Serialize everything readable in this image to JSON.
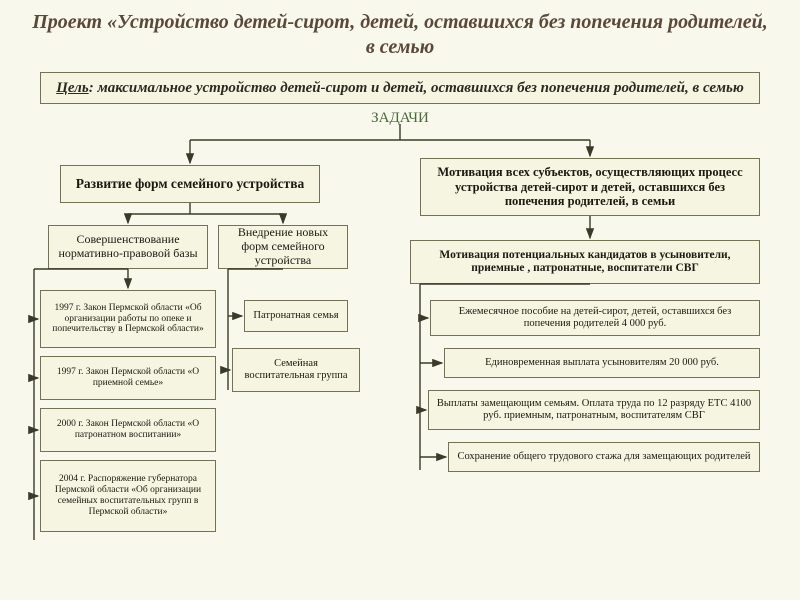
{
  "title": "Проект «Устройство детей-сирот, детей, оставшихся без попечения родителей, в семью",
  "goal_label": "Цель",
  "goal_text": ": максимальное устройство детей-сирот и детей, оставшихся без попечения родителей, в семью",
  "tasks_label": "ЗАДАЧИ",
  "left_header": "Развитие форм семейного устройства",
  "right_header": "Мотивация всех субъектов, осуществляющих процесс устройства детей-сирот и детей, оставшихся без попечения родителей, в семьи",
  "sub_left_a": "Совершенствование нормативно-правовой базы",
  "sub_left_b": "Внедрение новых форм семейного устройства",
  "law1": "1997 г.\nЗакон Пермской области «Об организации работы по опеке и попечительству в Пермской области»",
  "law2": "1997 г.\nЗакон Пермской области «О приемной семье»",
  "law3": "2000 г.\nЗакон Пермской области «О патронатном воспитании»",
  "law4": "2004 г.\nРаспоряжение губернатора Пермской области «Об организации семейных воспитательных групп в Пермской области»",
  "form1": "Патронатная семья",
  "form2": "Семейная воспитательная группа",
  "motiv_sub": "Мотивация потенциальных кандидатов в усыновители, приемные , патронатные, воспитатели СВГ",
  "pay1": "Ежемесячное пособие на детей-сирот, детей, оставшихся без попечения родителей\n4 000 руб.",
  "pay2": "Единовременная выплата усыновителям\n20 000 руб.",
  "pay3": "Выплаты замещающим семьям. Оплата труда по 12 разряду ЕТС 4100 руб. приемным, патронатным, воспитателям СВГ",
  "pay4": "Сохранение общего трудового стажа для замещающих родителей",
  "colors": {
    "page_bg": "#f9f8ed",
    "box_bg": "#f6f5e2",
    "box_border": "#737353",
    "title_color": "#5a4838",
    "tasks_color": "#4a6a3a",
    "arrow": "#3a3a28"
  },
  "layout": {
    "goal": [
      40,
      80,
      720,
      44
    ],
    "left_header": [
      60,
      165,
      260,
      38
    ],
    "right_header": [
      420,
      158,
      340,
      58
    ],
    "sub_left_a": [
      48,
      225,
      160,
      44
    ],
    "sub_left_b": [
      218,
      225,
      130,
      44
    ],
    "law1": [
      40,
      290,
      176,
      58
    ],
    "law2": [
      40,
      356,
      176,
      44
    ],
    "law3": [
      40,
      408,
      176,
      44
    ],
    "law4": [
      40,
      460,
      176,
      72
    ],
    "form1": [
      244,
      300,
      104,
      32
    ],
    "form2": [
      232,
      348,
      128,
      44
    ],
    "motiv_sub": [
      410,
      240,
      350,
      44
    ],
    "pay1": [
      430,
      300,
      330,
      36
    ],
    "pay2": [
      444,
      348,
      316,
      30
    ],
    "pay3": [
      428,
      390,
      332,
      40
    ],
    "pay4": [
      448,
      442,
      312,
      30
    ]
  }
}
